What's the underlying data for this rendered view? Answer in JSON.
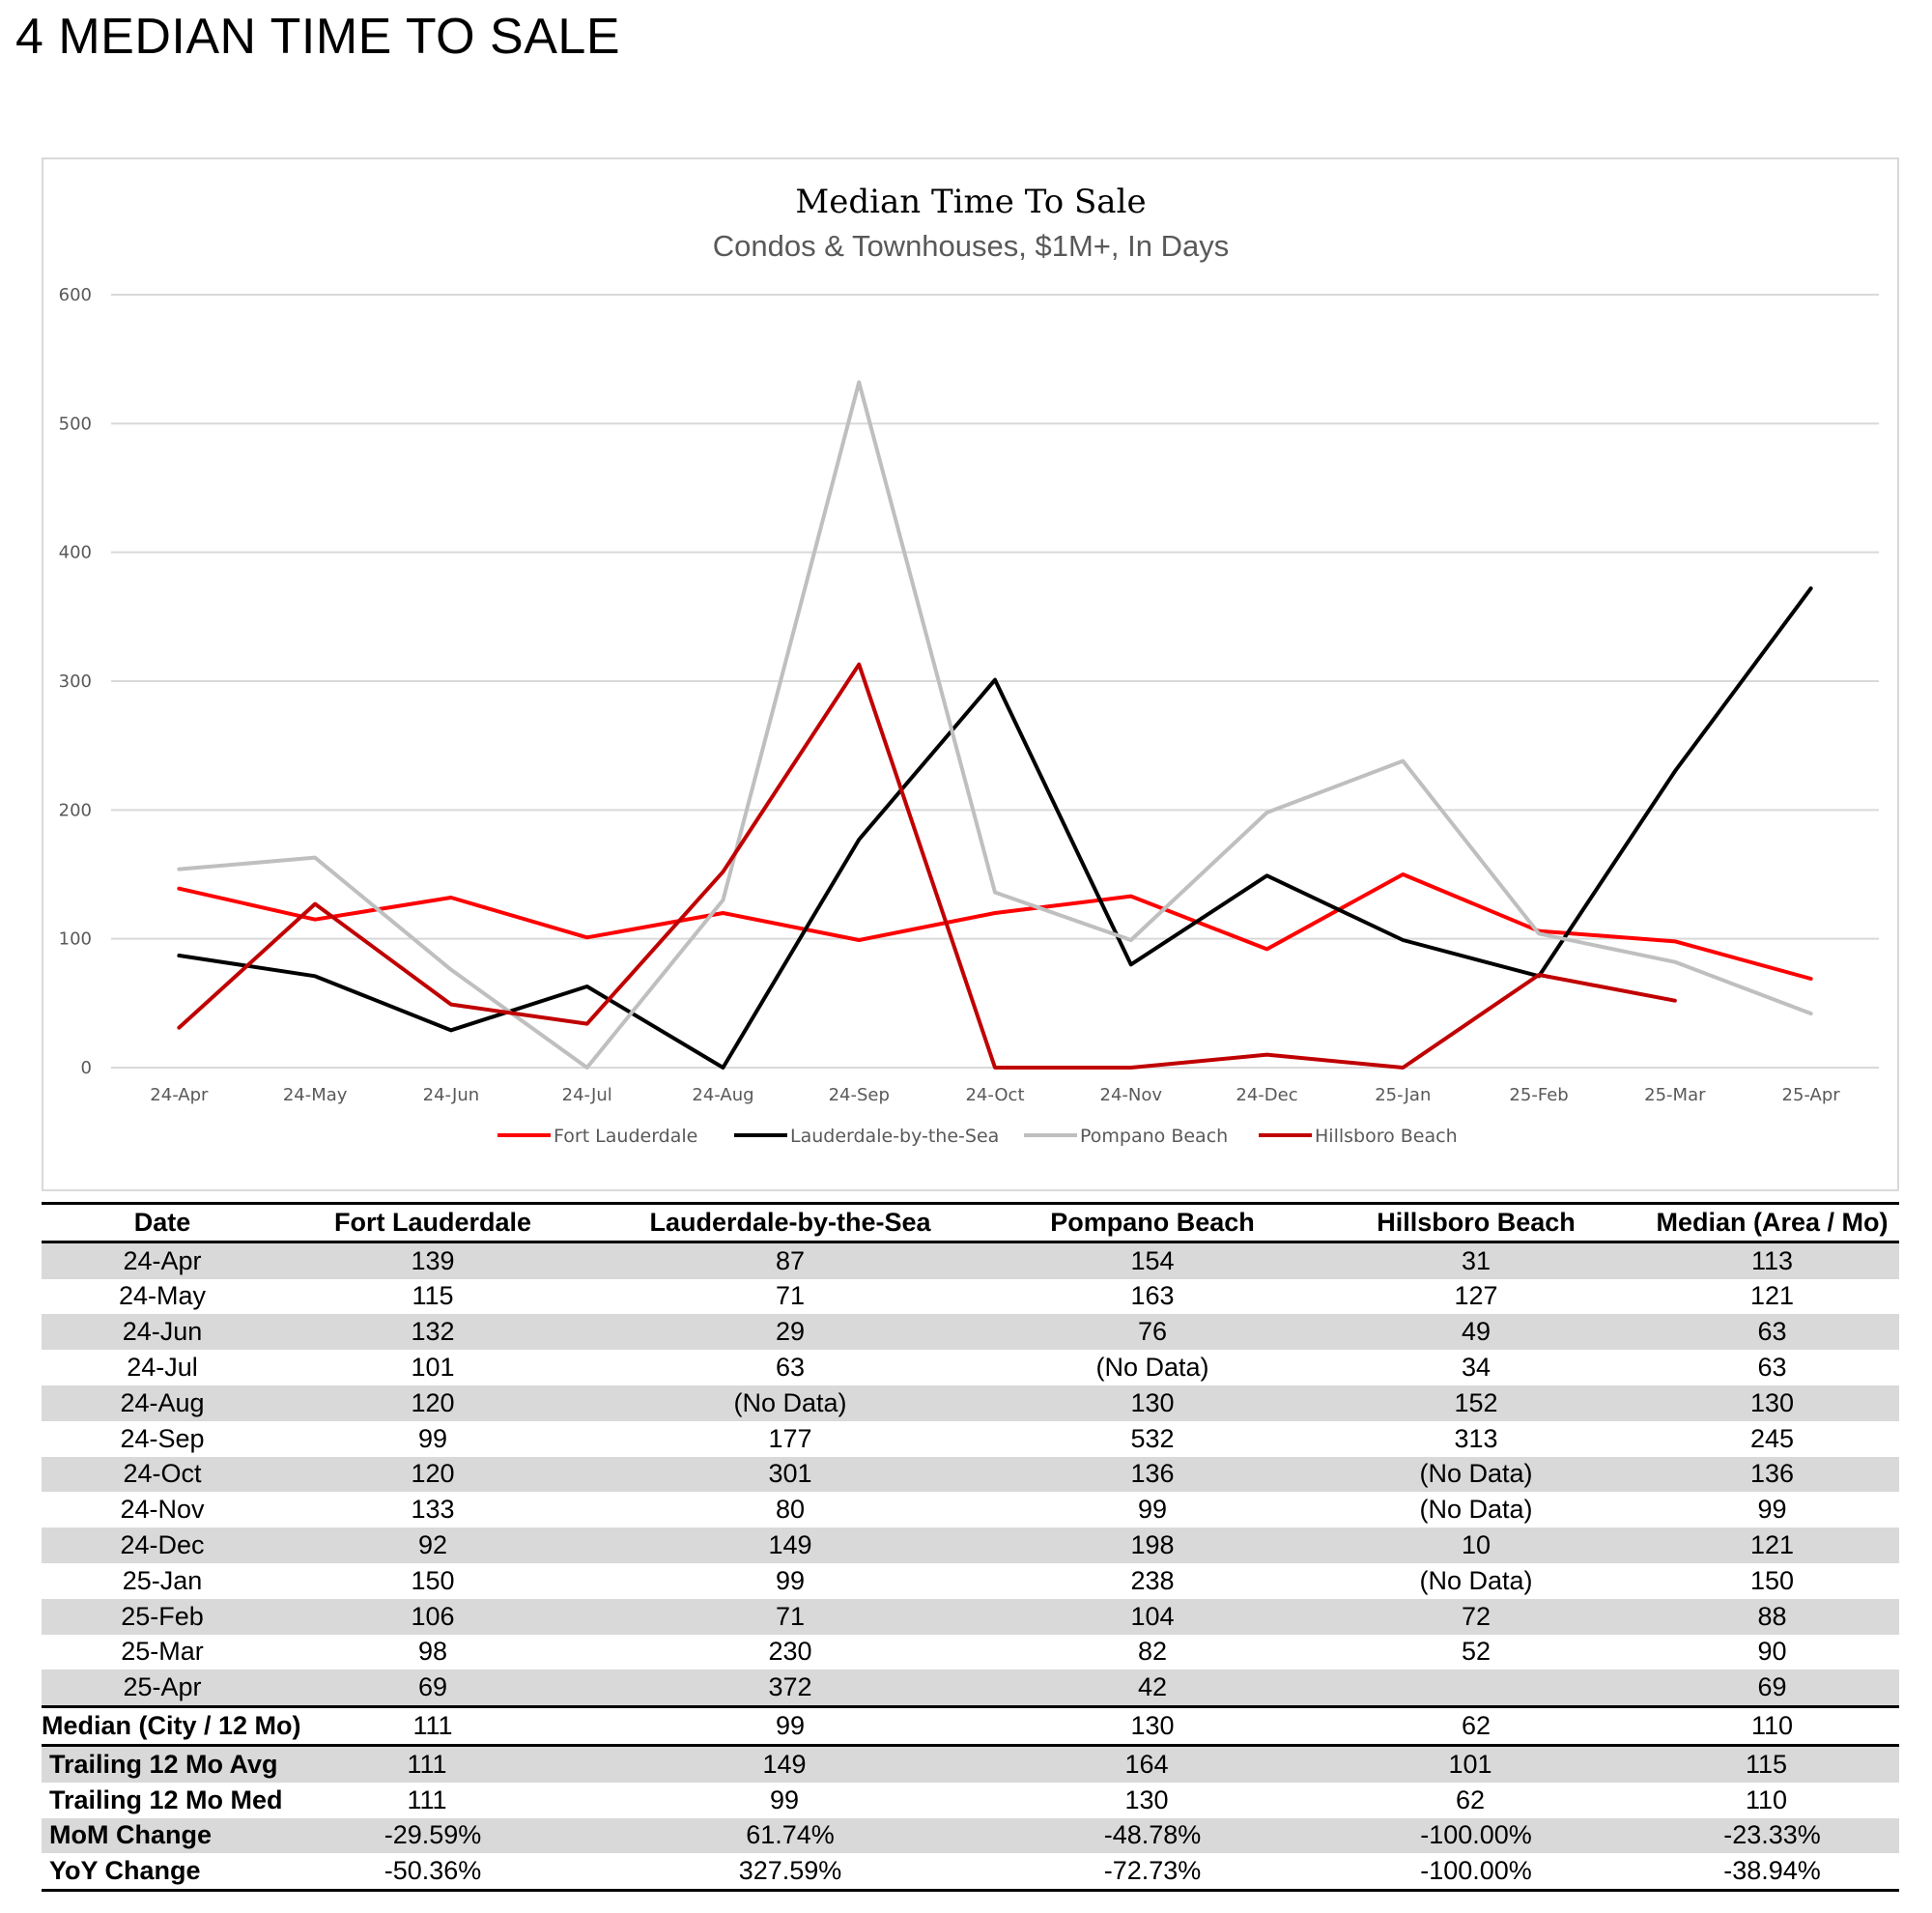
{
  "page": {
    "heading": "4 MEDIAN TIME TO SALE"
  },
  "chart_data": {
    "type": "line",
    "title": "Median Time To Sale",
    "subtitle": "Condos & Townhouses, $1M+, In Days",
    "categories": [
      "24-Apr",
      "24-May",
      "24-Jun",
      "24-Jul",
      "24-Aug",
      "24-Sep",
      "24-Oct",
      "24-Nov",
      "24-Dec",
      "25-Jan",
      "25-Feb",
      "25-Mar",
      "25-Apr"
    ],
    "ylim": [
      0,
      600
    ],
    "yticks": [
      0,
      100,
      200,
      300,
      400,
      500,
      600
    ],
    "grid": true,
    "legend": "bottom",
    "series": [
      {
        "name": "Fort Lauderdale",
        "color": "#ff0000",
        "values": [
          139,
          115,
          132,
          101,
          120,
          99,
          120,
          133,
          92,
          150,
          106,
          98,
          69
        ]
      },
      {
        "name": "Lauderdale-by-the-Sea",
        "color": "#000000",
        "values": [
          87,
          71,
          29,
          63,
          0,
          177,
          301,
          80,
          149,
          99,
          71,
          230,
          372
        ]
      },
      {
        "name": "Pompano Beach",
        "color": "#bfbfbf",
        "values": [
          154,
          163,
          76,
          0,
          130,
          532,
          136,
          99,
          198,
          238,
          104,
          82,
          42
        ]
      },
      {
        "name": "Hillsboro Beach",
        "color": "#c00000",
        "values": [
          31,
          127,
          49,
          34,
          152,
          313,
          0,
          0,
          10,
          0,
          72,
          52,
          null
        ]
      }
    ]
  },
  "table": {
    "headers": [
      "Date",
      "Fort Lauderdale",
      "Lauderdale-by-the-Sea",
      "Pompano Beach",
      "Hillsboro Beach",
      "Median (Area / Mo)"
    ],
    "rows": [
      [
        "24-Apr",
        "139",
        "87",
        "154",
        "31",
        "113"
      ],
      [
        "24-May",
        "115",
        "71",
        "163",
        "127",
        "121"
      ],
      [
        "24-Jun",
        "132",
        "29",
        "76",
        "49",
        "63"
      ],
      [
        "24-Jul",
        "101",
        "63",
        "(No Data)",
        "34",
        "63"
      ],
      [
        "24-Aug",
        "120",
        "(No Data)",
        "130",
        "152",
        "130"
      ],
      [
        "24-Sep",
        "99",
        "177",
        "532",
        "313",
        "245"
      ],
      [
        "24-Oct",
        "120",
        "301",
        "136",
        "(No Data)",
        "136"
      ],
      [
        "24-Nov",
        "133",
        "80",
        "99",
        "(No Data)",
        "99"
      ],
      [
        "24-Dec",
        "92",
        "149",
        "198",
        "10",
        "121"
      ],
      [
        "25-Jan",
        "150",
        "99",
        "238",
        "(No Data)",
        "150"
      ],
      [
        "25-Feb",
        "106",
        "71",
        "104",
        "72",
        "88"
      ],
      [
        "25-Mar",
        "98",
        "230",
        "82",
        "52",
        "90"
      ],
      [
        "25-Apr",
        "69",
        "372",
        "42",
        "",
        "69"
      ]
    ],
    "median_row": [
      "Median (City / 12 Mo)",
      "111",
      "99",
      "130",
      "62",
      "110"
    ],
    "trailing_avg": [
      "Trailing 12 Mo Avg",
      "111",
      "149",
      "164",
      "101",
      "115"
    ],
    "trailing_med": [
      "Trailing 12 Mo Med",
      "111",
      "99",
      "130",
      "62",
      "110"
    ],
    "mom": [
      "MoM Change",
      "-29.59%",
      "61.74%",
      "-48.78%",
      "-100.00%",
      "-23.33%"
    ],
    "yoy": [
      "YoY Change",
      "-50.36%",
      "327.59%",
      "-72.73%",
      "-100.00%",
      "-38.94%"
    ]
  }
}
